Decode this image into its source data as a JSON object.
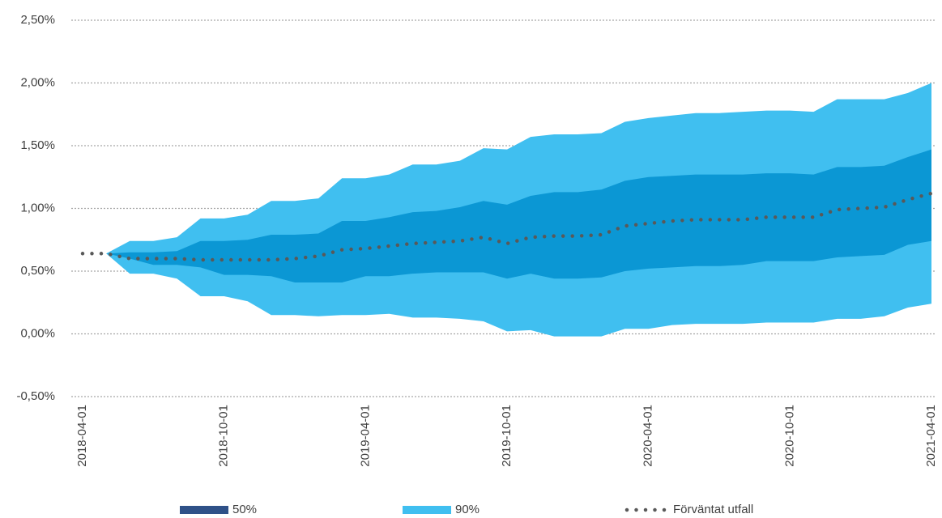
{
  "chart_data": {
    "type": "fan",
    "categories": [
      "2018-04-01",
      null,
      null,
      null,
      null,
      null,
      "2018-10-01",
      null,
      null,
      null,
      null,
      null,
      "2019-04-01",
      null,
      null,
      null,
      null,
      null,
      "2019-10-01",
      null,
      null,
      null,
      null,
      null,
      "2020-04-01",
      null,
      null,
      null,
      null,
      null,
      "2020-10-01",
      null,
      null,
      null,
      null,
      null,
      "2021-04-01"
    ],
    "ylim": [
      -0.5,
      2.5
    ],
    "yticks": [
      {
        "value": -0.5,
        "label": "-0,50%"
      },
      {
        "value": 0,
        "label": "0,00%"
      },
      {
        "value": 0.5,
        "label": "0,50%"
      },
      {
        "value": 1,
        "label": "1,00%"
      },
      {
        "value": 1.5,
        "label": "1,50%"
      },
      {
        "value": 2,
        "label": "2,00%"
      },
      {
        "value": 2.5,
        "label": "2,50%"
      }
    ],
    "grid": true,
    "series": [
      {
        "name": "50%",
        "kind": "band",
        "color": "#0b97d4",
        "legend_color": "#2f5188",
        "upper": [
          0.64,
          0.64,
          0.65,
          0.65,
          0.66,
          0.74,
          0.74,
          0.75,
          0.79,
          0.79,
          0.8,
          0.9,
          0.9,
          0.93,
          0.97,
          0.98,
          1.01,
          1.06,
          1.03,
          1.1,
          1.13,
          1.13,
          1.15,
          1.22,
          1.25,
          1.26,
          1.27,
          1.27,
          1.27,
          1.28,
          1.28,
          1.27,
          1.33,
          1.33,
          1.34,
          1.41,
          1.47
        ],
        "lower": [
          0.64,
          0.64,
          0.6,
          0.55,
          0.55,
          0.53,
          0.47,
          0.47,
          0.46,
          0.41,
          0.41,
          0.41,
          0.46,
          0.46,
          0.48,
          0.49,
          0.49,
          0.49,
          0.44,
          0.48,
          0.44,
          0.44,
          0.45,
          0.5,
          0.52,
          0.53,
          0.54,
          0.54,
          0.55,
          0.58,
          0.58,
          0.58,
          0.61,
          0.62,
          0.63,
          0.71,
          0.74
        ]
      },
      {
        "name": "90%",
        "kind": "band",
        "color": "#40bff0",
        "legend_color": "#40bff0",
        "upper": [
          0.64,
          0.64,
          0.74,
          0.74,
          0.77,
          0.92,
          0.92,
          0.95,
          1.06,
          1.06,
          1.08,
          1.24,
          1.24,
          1.27,
          1.35,
          1.35,
          1.38,
          1.48,
          1.47,
          1.57,
          1.59,
          1.59,
          1.6,
          1.69,
          1.72,
          1.74,
          1.76,
          1.76,
          1.77,
          1.78,
          1.78,
          1.77,
          1.87,
          1.87,
          1.87,
          1.92,
          2.0
        ],
        "lower": [
          0.64,
          0.64,
          0.48,
          0.48,
          0.44,
          0.3,
          0.3,
          0.26,
          0.15,
          0.15,
          0.14,
          0.15,
          0.15,
          0.16,
          0.13,
          0.13,
          0.12,
          0.1,
          0.02,
          0.03,
          -0.02,
          -0.02,
          -0.02,
          0.04,
          0.04,
          0.07,
          0.08,
          0.08,
          0.08,
          0.09,
          0.09,
          0.09,
          0.12,
          0.12,
          0.14,
          0.21,
          0.24
        ]
      },
      {
        "name": "Förväntat utfall",
        "kind": "line",
        "color": "#595959",
        "values": [
          0.64,
          0.64,
          0.6,
          0.6,
          0.6,
          0.59,
          0.59,
          0.59,
          0.59,
          0.6,
          0.62,
          0.67,
          0.68,
          0.7,
          0.72,
          0.73,
          0.74,
          0.77,
          0.72,
          0.77,
          0.78,
          0.78,
          0.79,
          0.86,
          0.88,
          0.9,
          0.91,
          0.91,
          0.91,
          0.93,
          0.93,
          0.93,
          0.99,
          1.0,
          1.01,
          1.07,
          1.12
        ]
      }
    ]
  }
}
